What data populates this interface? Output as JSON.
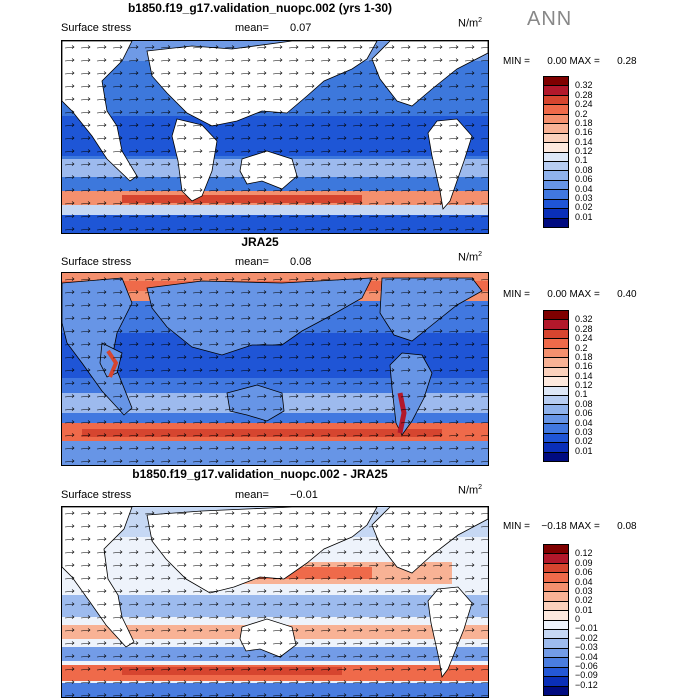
{
  "season": "ANN",
  "panels": [
    {
      "title": "b1850.f19_g17.validation_nuopc.002 (yrs 1-30)",
      "field": "Surface stress",
      "mean_label": "mean=",
      "mean_value": "0.07",
      "units_base": "N/m",
      "units_exp": "2",
      "min_label": "MIN =",
      "min_value": "0.00",
      "max_label": "MAX =",
      "max_value": "0.28",
      "colorbar_labels": [
        "0.32",
        "0.28",
        "0.24",
        "0.2",
        "0.18",
        "0.16",
        "0.14",
        "0.12",
        "0.1",
        "0.08",
        "0.06",
        "0.04",
        "0.03",
        "0.02",
        "0.01"
      ],
      "colorbar_colors": [
        "#7f0000",
        "#b2182b",
        "#d6452f",
        "#ef6a4a",
        "#f4906e",
        "#f8b295",
        "#fbd1bc",
        "#fde9de",
        "#dde7f7",
        "#b7cdf2",
        "#8fb2ec",
        "#6795e6",
        "#4178e0",
        "#1f55d6",
        "#0a2fb8",
        "#000b80"
      ]
    },
    {
      "title": "JRA25",
      "field": "Surface stress",
      "mean_label": "mean=",
      "mean_value": "0.08",
      "units_base": "N/m",
      "units_exp": "2",
      "min_label": "MIN =",
      "min_value": "0.00",
      "max_label": "MAX =",
      "max_value": "0.40",
      "colorbar_labels": [
        "0.32",
        "0.28",
        "0.24",
        "0.2",
        "0.18",
        "0.16",
        "0.14",
        "0.12",
        "0.1",
        "0.08",
        "0.06",
        "0.04",
        "0.03",
        "0.02",
        "0.01"
      ],
      "colorbar_colors": [
        "#7f0000",
        "#b2182b",
        "#d6452f",
        "#ef6a4a",
        "#f4906e",
        "#f8b295",
        "#fbd1bc",
        "#fde9de",
        "#dde7f7",
        "#b7cdf2",
        "#8fb2ec",
        "#6795e6",
        "#4178e0",
        "#1f55d6",
        "#0a2fb8",
        "#000b80"
      ]
    },
    {
      "title": "b1850.f19_g17.validation_nuopc.002 - JRA25",
      "field": "Surface stress",
      "mean_label": "mean=",
      "mean_value": "−0.01",
      "units_base": "N/m",
      "units_exp": "2",
      "min_label": "MIN =",
      "min_value": "−0.18",
      "max_label": "MAX =",
      "max_value": "0.08",
      "colorbar_labels": [
        "0.12",
        "0.09",
        "0.06",
        "0.04",
        "0.03",
        "0.02",
        "0.01",
        "0",
        "−0.01",
        "−0.02",
        "−0.03",
        "−0.04",
        "−0.06",
        "−0.09",
        "−0.12"
      ],
      "colorbar_colors": [
        "#7f0000",
        "#b2182b",
        "#d6452f",
        "#ef6a4a",
        "#f4906e",
        "#f8b295",
        "#fbd1bc",
        "#fde9de",
        "#eef3fb",
        "#c6d8f4",
        "#9dbbee",
        "#739ce7",
        "#4a7de0",
        "#2458d6",
        "#0a2fb8",
        "#000b80"
      ]
    }
  ]
}
